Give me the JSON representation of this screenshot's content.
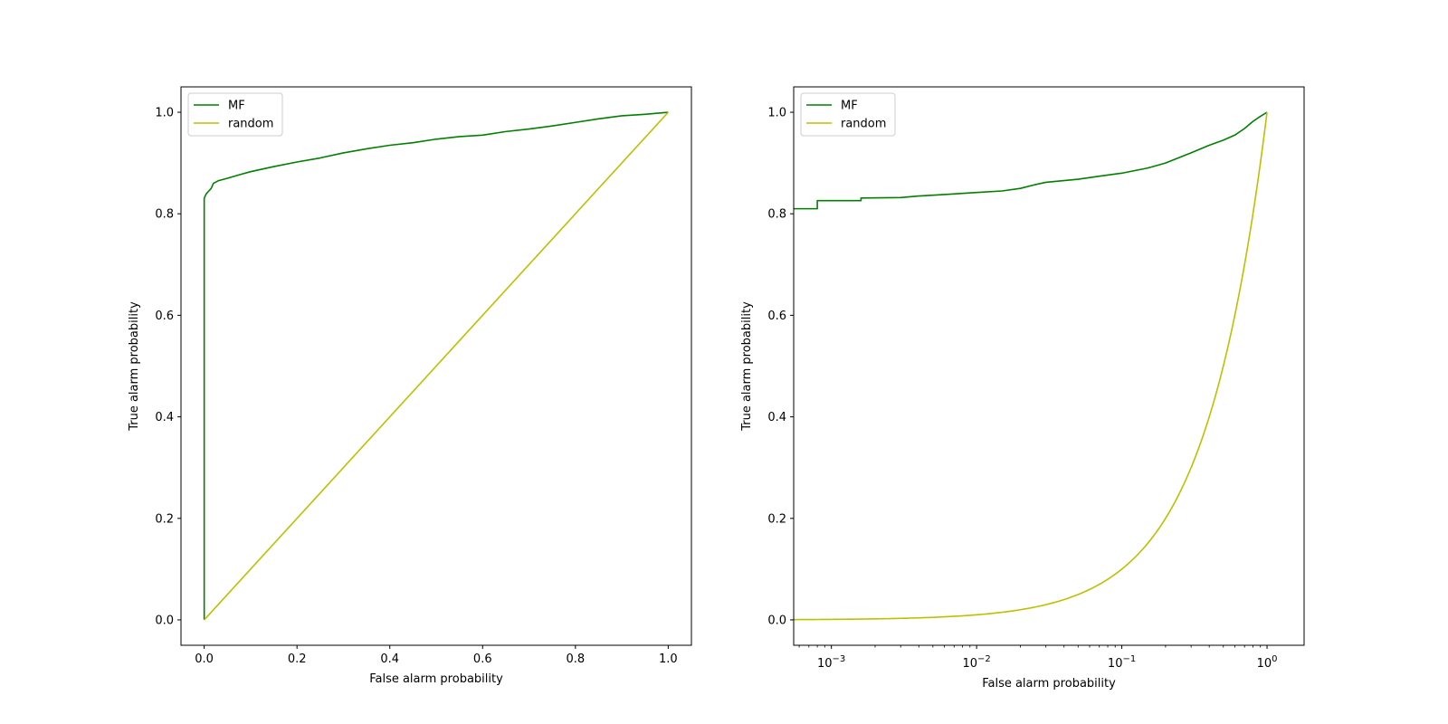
{
  "chart_data": [
    {
      "type": "line",
      "xlabel": "False alarm probability",
      "ylabel": "True alarm probability",
      "xscale": "linear",
      "xlim": [
        -0.05,
        1.05
      ],
      "ylim": [
        -0.05,
        1.05
      ],
      "xticks": [
        0.0,
        0.2,
        0.4,
        0.6,
        0.8,
        1.0
      ],
      "xtick_labels": [
        "0.0",
        "0.2",
        "0.4",
        "0.6",
        "0.8",
        "1.0"
      ],
      "yticks": [
        0.0,
        0.2,
        0.4,
        0.6,
        0.8,
        1.0
      ],
      "ytick_labels": [
        "0.0",
        "0.2",
        "0.4",
        "0.6",
        "0.8",
        "1.0"
      ],
      "legend_position": "upper-left",
      "grid": false,
      "series": [
        {
          "name": "MF",
          "color": "#008000",
          "x": [
            0.0,
            0.0,
            0.002,
            0.005,
            0.01,
            0.015,
            0.02,
            0.03,
            0.05,
            0.08,
            0.1,
            0.15,
            0.2,
            0.25,
            0.3,
            0.35,
            0.4,
            0.45,
            0.5,
            0.55,
            0.6,
            0.65,
            0.7,
            0.75,
            0.8,
            0.85,
            0.9,
            0.95,
            1.0
          ],
          "y": [
            0.0,
            0.83,
            0.835,
            0.84,
            0.845,
            0.85,
            0.86,
            0.865,
            0.87,
            0.878,
            0.883,
            0.893,
            0.902,
            0.91,
            0.92,
            0.928,
            0.935,
            0.94,
            0.947,
            0.952,
            0.955,
            0.962,
            0.967,
            0.973,
            0.98,
            0.987,
            0.993,
            0.996,
            1.0
          ]
        },
        {
          "name": "random",
          "color": "#bfbf00",
          "x": [
            0.0,
            1.0
          ],
          "y": [
            0.0,
            1.0
          ]
        }
      ]
    },
    {
      "type": "line",
      "xlabel": "False alarm probability",
      "ylabel": "True alarm probability",
      "xscale": "log",
      "xlim": [
        0.00055,
        1.8
      ],
      "ylim": [
        -0.05,
        1.05
      ],
      "xticks": [
        0.001,
        0.01,
        0.1,
        1
      ],
      "xtick_labels": [
        [
          "10",
          "−3"
        ],
        [
          "10",
          "−2"
        ],
        [
          "10",
          "−1"
        ],
        [
          "10",
          "0"
        ]
      ],
      "yticks": [
        0.0,
        0.2,
        0.4,
        0.6,
        0.8,
        1.0
      ],
      "ytick_labels": [
        "0.0",
        "0.2",
        "0.4",
        "0.6",
        "0.8",
        "1.0"
      ],
      "legend_position": "upper-left",
      "grid": false,
      "series": [
        {
          "name": "MF",
          "color": "#008000",
          "x": [
            0.00055,
            0.0008,
            0.0008,
            0.0016,
            0.0016,
            0.003,
            0.004,
            0.006,
            0.01,
            0.015,
            0.02,
            0.025,
            0.03,
            0.05,
            0.07,
            0.1,
            0.15,
            0.2,
            0.3,
            0.4,
            0.5,
            0.6,
            0.7,
            0.8,
            0.9,
            1.0
          ],
          "y": [
            0.81,
            0.81,
            0.826,
            0.826,
            0.831,
            0.832,
            0.835,
            0.838,
            0.842,
            0.845,
            0.85,
            0.857,
            0.862,
            0.868,
            0.874,
            0.88,
            0.89,
            0.9,
            0.92,
            0.935,
            0.945,
            0.955,
            0.968,
            0.982,
            0.992,
            1.0
          ]
        },
        {
          "name": "random",
          "color": "#bfbf00",
          "x": [
            0.00055,
            1.0
          ],
          "y": [
            0.00055,
            1.0
          ],
          "relation": "y = x"
        }
      ]
    }
  ]
}
